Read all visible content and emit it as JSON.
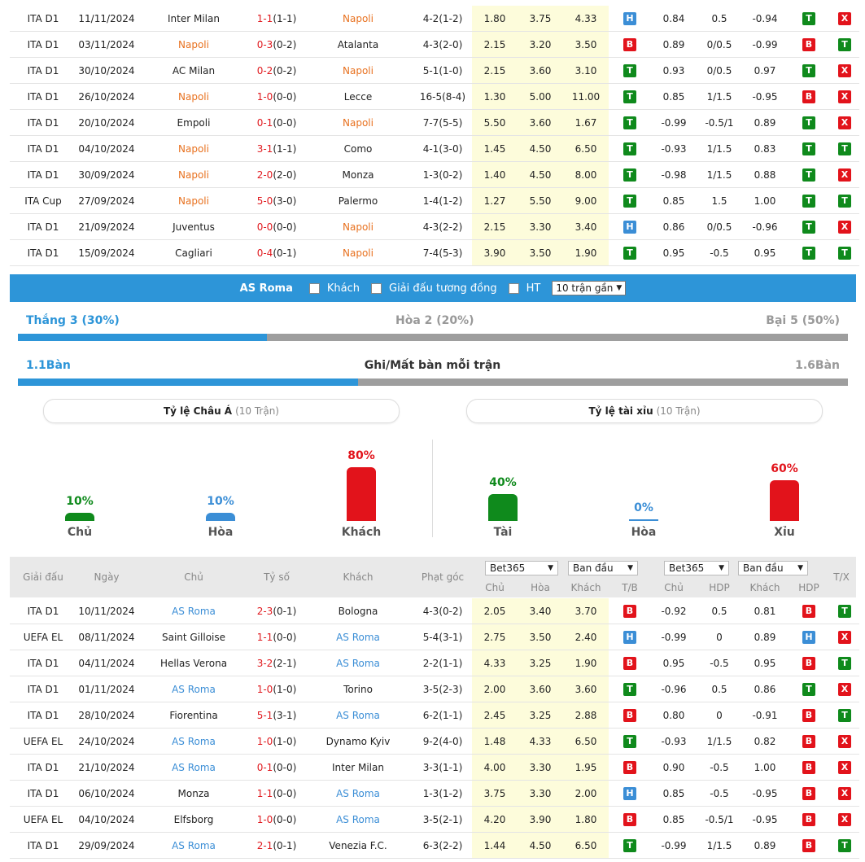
{
  "top_matches": [
    {
      "league": "ITA D1",
      "date": "11/11/2024",
      "home": "Inter Milan",
      "score": "1-1",
      "ht": "(1-1)",
      "away": "Napoli",
      "hl": "away",
      "corners": "4-2(1-2)",
      "o1": "1.80",
      "o2": "3.75",
      "o3": "4.33",
      "r1": "H",
      "a1": "0.84",
      "a2": "0.5",
      "a3": "-0.94",
      "r2": "T",
      "r3": "X"
    },
    {
      "league": "ITA D1",
      "date": "03/11/2024",
      "home": "Napoli",
      "score": "0-3",
      "ht": "(0-2)",
      "away": "Atalanta",
      "hl": "home",
      "corners": "4-3(2-0)",
      "o1": "2.15",
      "o2": "3.20",
      "o3": "3.50",
      "r1": "B",
      "a1": "0.89",
      "a2": "0/0.5",
      "a3": "-0.99",
      "r2": "B",
      "r3": "T"
    },
    {
      "league": "ITA D1",
      "date": "30/10/2024",
      "home": "AC Milan",
      "score": "0-2",
      "ht": "(0-2)",
      "away": "Napoli",
      "hl": "away",
      "corners": "5-1(1-0)",
      "o1": "2.15",
      "o2": "3.60",
      "o3": "3.10",
      "r1": "T",
      "a1": "0.93",
      "a2": "0/0.5",
      "a3": "0.97",
      "r2": "T",
      "r3": "X"
    },
    {
      "league": "ITA D1",
      "date": "26/10/2024",
      "home": "Napoli",
      "score": "1-0",
      "ht": "(0-0)",
      "away": "Lecce",
      "hl": "home",
      "corners": "16-5(8-4)",
      "o1": "1.30",
      "o2": "5.00",
      "o3": "11.00",
      "r1": "T",
      "a1": "0.85",
      "a2": "1/1.5",
      "a3": "-0.95",
      "r2": "B",
      "r3": "X"
    },
    {
      "league": "ITA D1",
      "date": "20/10/2024",
      "home": "Empoli",
      "score": "0-1",
      "ht": "(0-0)",
      "away": "Napoli",
      "hl": "away",
      "corners": "7-7(5-5)",
      "o1": "5.50",
      "o2": "3.60",
      "o3": "1.67",
      "r1": "T",
      "a1": "-0.99",
      "a2": "-0.5/1",
      "a3": "0.89",
      "r2": "T",
      "r3": "X"
    },
    {
      "league": "ITA D1",
      "date": "04/10/2024",
      "home": "Napoli",
      "score": "3-1",
      "ht": "(1-1)",
      "away": "Como",
      "hl": "home",
      "corners": "4-1(3-0)",
      "o1": "1.45",
      "o2": "4.50",
      "o3": "6.50",
      "r1": "T",
      "a1": "-0.93",
      "a2": "1/1.5",
      "a3": "0.83",
      "r2": "T",
      "r3": "T"
    },
    {
      "league": "ITA D1",
      "date": "30/09/2024",
      "home": "Napoli",
      "score": "2-0",
      "ht": "(2-0)",
      "away": "Monza",
      "hl": "home",
      "corners": "1-3(0-2)",
      "o1": "1.40",
      "o2": "4.50",
      "o3": "8.00",
      "r1": "T",
      "a1": "-0.98",
      "a2": "1/1.5",
      "a3": "0.88",
      "r2": "T",
      "r3": "X"
    },
    {
      "league": "ITA Cup",
      "date": "27/09/2024",
      "home": "Napoli",
      "score": "5-0",
      "ht": "(3-0)",
      "away": "Palermo",
      "hl": "home",
      "corners": "1-4(1-2)",
      "o1": "1.27",
      "o2": "5.50",
      "o3": "9.00",
      "r1": "T",
      "a1": "0.85",
      "a2": "1.5",
      "a3": "1.00",
      "r2": "T",
      "r3": "T"
    },
    {
      "league": "ITA D1",
      "date": "21/09/2024",
      "home": "Juventus",
      "score": "0-0",
      "ht": "(0-0)",
      "away": "Napoli",
      "hl": "away",
      "corners": "4-3(2-2)",
      "o1": "2.15",
      "o2": "3.30",
      "o3": "3.40",
      "r1": "H",
      "a1": "0.86",
      "a2": "0/0.5",
      "a3": "-0.96",
      "r2": "T",
      "r3": "X"
    },
    {
      "league": "ITA D1",
      "date": "15/09/2024",
      "home": "Cagliari",
      "score": "0-4",
      "ht": "(0-1)",
      "away": "Napoli",
      "hl": "away",
      "corners": "7-4(5-3)",
      "o1": "3.90",
      "o2": "3.50",
      "o3": "1.90",
      "r1": "T",
      "a1": "0.95",
      "a2": "-0.5",
      "a3": "0.95",
      "r2": "T",
      "r3": "T"
    }
  ],
  "filter_bar": {
    "team": "AS Roma",
    "opt_away": "Khách",
    "opt_same_league": "Giải đấu tương đồng",
    "opt_ht": "HT",
    "select_value": "10 trận gần"
  },
  "results_summary": {
    "win": "Thắng 3 (30%)",
    "draw": "Hòa 2 (20%)",
    "loss": "Bại 5 (50%)",
    "win_fraction": 0.3
  },
  "goals_summary": {
    "scored": "1.1Bàn",
    "title": "Ghi/Mất bàn mỗi trận",
    "conceded": "1.6Bàn",
    "scored_fraction": 0.41
  },
  "asian_handicap": {
    "title": "Tỷ lệ Châu Á",
    "count": "(10 Trận)",
    "items": [
      {
        "label": "Chủ",
        "pct": "10%",
        "value": 10,
        "color": "#0f8a1c"
      },
      {
        "label": "Hòa",
        "pct": "10%",
        "value": 10,
        "color": "#3b8ed6"
      },
      {
        "label": "Khách",
        "pct": "80%",
        "value": 80,
        "color": "#e2131b"
      }
    ]
  },
  "over_under": {
    "title": "Tỷ lệ tài xỉu",
    "count": "(10 Trận)",
    "items": [
      {
        "label": "Tài",
        "pct": "40%",
        "value": 40,
        "color": "#0f8a1c"
      },
      {
        "label": "Hòa",
        "pct": "0%",
        "value": 0,
        "color": "#3b8ed6"
      },
      {
        "label": "Xỉu",
        "pct": "60%",
        "value": 60,
        "color": "#e2131b"
      }
    ]
  },
  "table_header": {
    "league": "Giải đấu",
    "date": "Ngày",
    "home": "Chủ",
    "score": "Tỷ số",
    "away": "Khách",
    "corners": "Phạt góc",
    "bookmaker1": "Bet365",
    "type1": "Ban đầu",
    "bookmaker2": "Bet365",
    "type2": "Ban đầu",
    "odds_home": "Chủ",
    "odds_draw": "Hòa",
    "odds_away": "Khách",
    "tb": "T/B",
    "ah_home": "Chủ",
    "ah_hdp": "HDP",
    "ah_away": "Khách",
    "ah_hdp2": "HDP",
    "tx": "T/X"
  },
  "bottom_matches": [
    {
      "league": "ITA D1",
      "date": "10/11/2024",
      "home": "AS Roma",
      "score": "2-3",
      "ht": "(0-1)",
      "away": "Bologna",
      "hl": "home",
      "corners": "4-3(0-2)",
      "o1": "2.05",
      "o2": "3.40",
      "o3": "3.70",
      "r1": "B",
      "a1": "-0.92",
      "a2": "0.5",
      "a3": "0.81",
      "r2": "B",
      "r3": "T"
    },
    {
      "league": "UEFA EL",
      "date": "08/11/2024",
      "home": "Saint Gilloise",
      "score": "1-1",
      "ht": "(0-0)",
      "away": "AS Roma",
      "hl": "away",
      "corners": "5-4(3-1)",
      "o1": "2.75",
      "o2": "3.50",
      "o3": "2.40",
      "r1": "H",
      "a1": "-0.99",
      "a2": "0",
      "a3": "0.89",
      "r2": "H",
      "r3": "X"
    },
    {
      "league": "ITA D1",
      "date": "04/11/2024",
      "home": "Hellas Verona",
      "score": "3-2",
      "ht": "(2-1)",
      "away": "AS Roma",
      "hl": "away",
      "corners": "2-2(1-1)",
      "o1": "4.33",
      "o2": "3.25",
      "o3": "1.90",
      "r1": "B",
      "a1": "0.95",
      "a2": "-0.5",
      "a3": "0.95",
      "r2": "B",
      "r3": "T"
    },
    {
      "league": "ITA D1",
      "date": "01/11/2024",
      "home": "AS Roma",
      "score": "1-0",
      "ht": "(1-0)",
      "away": "Torino",
      "hl": "home",
      "corners": "3-5(2-3)",
      "o1": "2.00",
      "o2": "3.60",
      "o3": "3.60",
      "r1": "T",
      "a1": "-0.96",
      "a2": "0.5",
      "a3": "0.86",
      "r2": "T",
      "r3": "X"
    },
    {
      "league": "ITA D1",
      "date": "28/10/2024",
      "home": "Fiorentina",
      "score": "5-1",
      "ht": "(3-1)",
      "away": "AS Roma",
      "hl": "away",
      "corners": "6-2(1-1)",
      "o1": "2.45",
      "o2": "3.25",
      "o3": "2.88",
      "r1": "B",
      "a1": "0.80",
      "a2": "0",
      "a3": "-0.91",
      "r2": "B",
      "r3": "T"
    },
    {
      "league": "UEFA EL",
      "date": "24/10/2024",
      "home": "AS Roma",
      "score": "1-0",
      "ht": "(1-0)",
      "away": "Dynamo Kyiv",
      "hl": "home",
      "corners": "9-2(4-0)",
      "o1": "1.48",
      "o2": "4.33",
      "o3": "6.50",
      "r1": "T",
      "a1": "-0.93",
      "a2": "1/1.5",
      "a3": "0.82",
      "r2": "B",
      "r3": "X"
    },
    {
      "league": "ITA D1",
      "date": "21/10/2024",
      "home": "AS Roma",
      "score": "0-1",
      "ht": "(0-0)",
      "away": "Inter Milan",
      "hl": "home",
      "corners": "3-3(1-1)",
      "o1": "4.00",
      "o2": "3.30",
      "o3": "1.95",
      "r1": "B",
      "a1": "0.90",
      "a2": "-0.5",
      "a3": "1.00",
      "r2": "B",
      "r3": "X"
    },
    {
      "league": "ITA D1",
      "date": "06/10/2024",
      "home": "Monza",
      "score": "1-1",
      "ht": "(0-0)",
      "away": "AS Roma",
      "hl": "away",
      "corners": "1-3(1-2)",
      "o1": "3.75",
      "o2": "3.30",
      "o3": "2.00",
      "r1": "H",
      "a1": "0.85",
      "a2": "-0.5",
      "a3": "-0.95",
      "r2": "B",
      "r3": "X"
    },
    {
      "league": "UEFA EL",
      "date": "04/10/2024",
      "home": "Elfsborg",
      "score": "1-0",
      "ht": "(0-0)",
      "away": "AS Roma",
      "hl": "away",
      "corners": "3-5(2-1)",
      "o1": "4.20",
      "o2": "3.90",
      "o3": "1.80",
      "r1": "B",
      "a1": "0.85",
      "a2": "-0.5/1",
      "a3": "-0.95",
      "r2": "B",
      "r3": "X"
    },
    {
      "league": "ITA D1",
      "date": "29/09/2024",
      "home": "AS Roma",
      "score": "2-1",
      "ht": "(0-1)",
      "away": "Venezia F.C.",
      "hl": "home",
      "corners": "6-3(2-2)",
      "o1": "1.44",
      "o2": "4.50",
      "o3": "6.50",
      "r1": "T",
      "a1": "-0.99",
      "a2": "1/1.5",
      "a3": "0.89",
      "r2": "B",
      "r3": "T"
    }
  ]
}
